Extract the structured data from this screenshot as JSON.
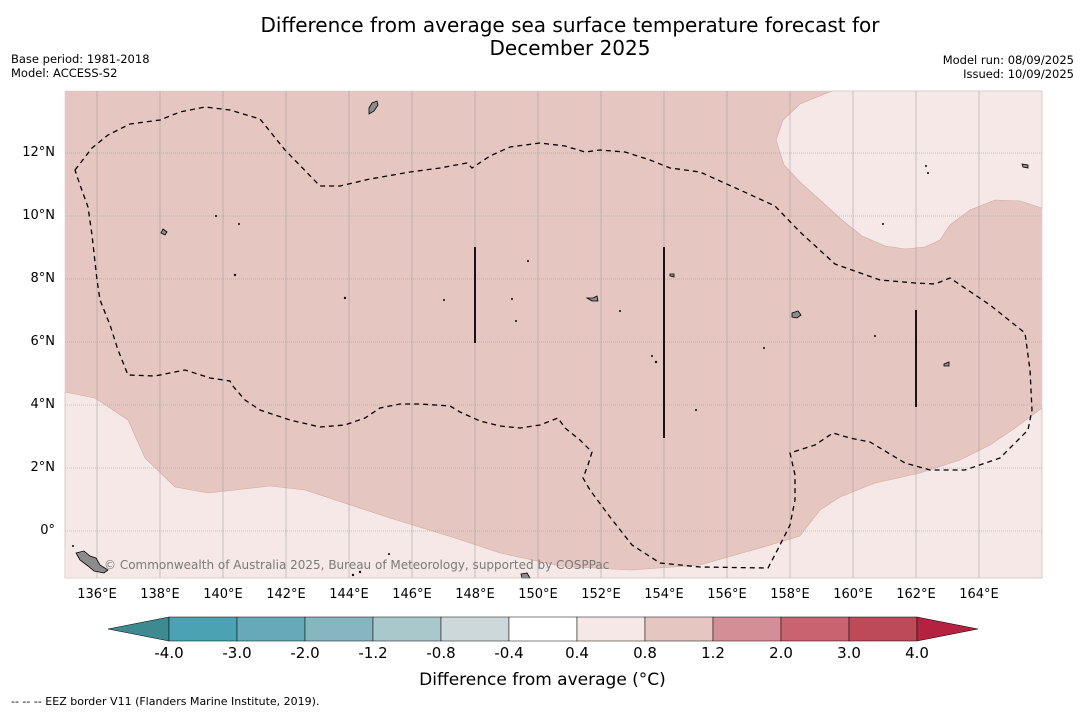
{
  "header": {
    "title_line1": "Difference from average sea surface temperature forecast for",
    "title_line2": "December 2025",
    "base_period": "Base period: 1981-2018",
    "model": "Model: ACCESS-S2",
    "model_run": "Model run: 08/09/2025",
    "issued": "Issued: 10/09/2025"
  },
  "map": {
    "lat_labels": [
      "12°N",
      "10°N",
      "8°N",
      "6°N",
      "4°N",
      "2°N",
      "0°"
    ],
    "lon_labels": [
      "136°E",
      "138°E",
      "140°E",
      "142°E",
      "144°E",
      "146°E",
      "148°E",
      "150°E",
      "152°E",
      "154°E",
      "156°E",
      "158°E",
      "160°E",
      "162°E",
      "164°E"
    ],
    "credit": "© Commonwealth of Australia 2025, Bureau of Meteorology, supported by COSPPac",
    "anomaly_fill_colors": {
      "0.4-0.8": "#f5e8e6",
      "0.8-1.2": "#e6c6c1",
      "land": "#8c8c8c"
    }
  },
  "colorbar": {
    "title": "Difference from average (°C)",
    "ticks": [
      "-4.0",
      "-3.0",
      "-2.0",
      "-1.2",
      "-0.8",
      "-0.4",
      "0.4",
      "0.8",
      "1.2",
      "2.0",
      "3.0",
      "4.0"
    ],
    "colors": [
      "#3d8a91",
      "#4aa2b2",
      "#68a9b9",
      "#87b6c0",
      "#a9c8cb",
      "#cdd8db",
      "#ffffff",
      "#f5e8e6",
      "#e6c6c1",
      "#d48f96",
      "#c86470",
      "#bd4a58",
      "#b52240"
    ]
  },
  "footer": {
    "legend_note": "--  --  -- EEZ border V11 (Flanders Marine Institute, 2019)."
  }
}
